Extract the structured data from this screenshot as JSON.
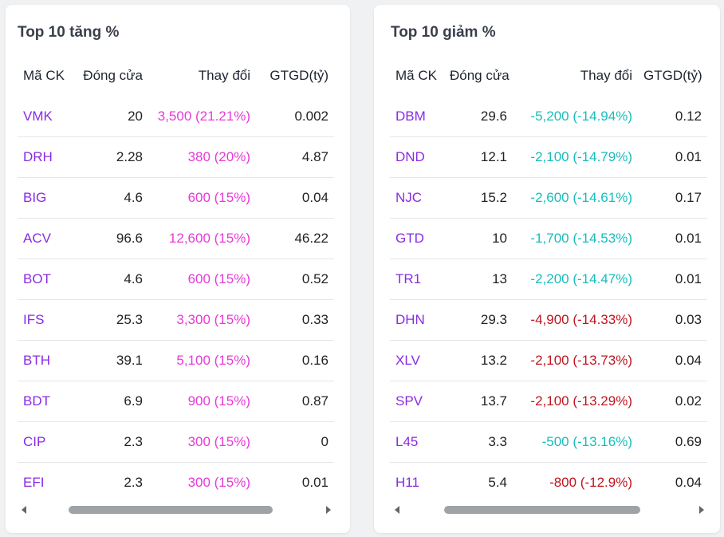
{
  "gainers": {
    "title": "Top 10 tăng %",
    "headers": [
      "Mã CK",
      "Đóng cửa",
      "Thay đổi",
      "GTGD(tỷ)"
    ],
    "rows": [
      {
        "symbol": "VMK",
        "close": "20",
        "change": "3,500 (21.21%)",
        "value": "0.002",
        "tone": "ceil"
      },
      {
        "symbol": "DRH",
        "close": "2.28",
        "change": "380 (20%)",
        "value": "4.87",
        "tone": "ceil"
      },
      {
        "symbol": "BIG",
        "close": "4.6",
        "change": "600 (15%)",
        "value": "0.04",
        "tone": "ceil"
      },
      {
        "symbol": "ACV",
        "close": "96.6",
        "change": "12,600 (15%)",
        "value": "46.22",
        "tone": "ceil"
      },
      {
        "symbol": "BOT",
        "close": "4.6",
        "change": "600 (15%)",
        "value": "0.52",
        "tone": "ceil"
      },
      {
        "symbol": "IFS",
        "close": "25.3",
        "change": "3,300 (15%)",
        "value": "0.33",
        "tone": "ceil"
      },
      {
        "symbol": "BTH",
        "close": "39.1",
        "change": "5,100 (15%)",
        "value": "0.16",
        "tone": "ceil"
      },
      {
        "symbol": "BDT",
        "close": "6.9",
        "change": "900 (15%)",
        "value": "0.87",
        "tone": "ceil"
      },
      {
        "symbol": "CIP",
        "close": "2.3",
        "change": "300 (15%)",
        "value": "0",
        "tone": "ceil"
      },
      {
        "symbol": "EFI",
        "close": "2.3",
        "change": "300 (15%)",
        "value": "0.01",
        "tone": "ceil"
      }
    ]
  },
  "losers": {
    "title": "Top 10 giảm %",
    "headers": [
      "Mã CK",
      "Đóng cửa",
      "Thay đổi",
      "GTGD(tỷ)"
    ],
    "rows": [
      {
        "symbol": "DBM",
        "close": "29.6",
        "change": "-5,200 (-14.94%)",
        "value": "0.12",
        "tone": "floor"
      },
      {
        "symbol": "DND",
        "close": "12.1",
        "change": "-2,100 (-14.79%)",
        "value": "0.01",
        "tone": "floor"
      },
      {
        "symbol": "NJC",
        "close": "15.2",
        "change": "-2,600 (-14.61%)",
        "value": "0.17",
        "tone": "floor"
      },
      {
        "symbol": "GTD",
        "close": "10",
        "change": "-1,700 (-14.53%)",
        "value": "0.01",
        "tone": "floor"
      },
      {
        "symbol": "TR1",
        "close": "13",
        "change": "-2,200 (-14.47%)",
        "value": "0.01",
        "tone": "floor"
      },
      {
        "symbol": "DHN",
        "close": "29.3",
        "change": "-4,900 (-14.33%)",
        "value": "0.03",
        "tone": "down"
      },
      {
        "symbol": "XLV",
        "close": "13.2",
        "change": "-2,100 (-13.73%)",
        "value": "0.04",
        "tone": "down"
      },
      {
        "symbol": "SPV",
        "close": "13.7",
        "change": "-2,100 (-13.29%)",
        "value": "0.02",
        "tone": "down"
      },
      {
        "symbol": "L45",
        "close": "3.3",
        "change": "-500 (-13.16%)",
        "value": "0.69",
        "tone": "floor"
      },
      {
        "symbol": "H11",
        "close": "5.4",
        "change": "-800 (-12.9%)",
        "value": "0.04",
        "tone": "down"
      }
    ]
  },
  "colors": {
    "symbol": "#8a2be2",
    "ceiling": "#e83ad6",
    "floor": "#19bcbc",
    "decrease": "#c0151f"
  }
}
